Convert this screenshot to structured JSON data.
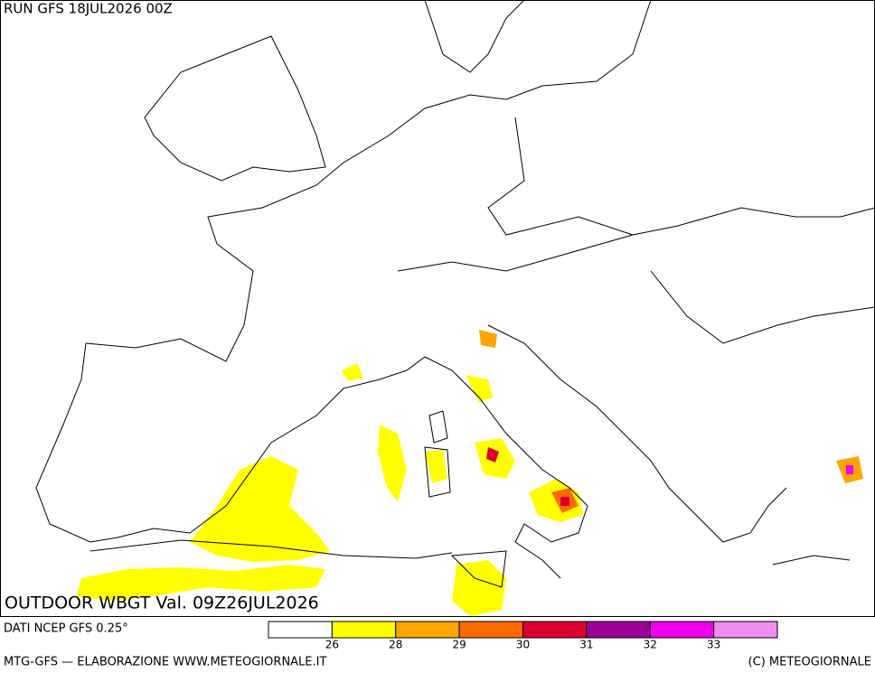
{
  "header": {
    "run": "RUN GFS 18JUL2026 00Z"
  },
  "map": {
    "title": "OUTDOOR WBGT Val. 09Z26JUL2026"
  },
  "footer": {
    "source": "DATI NCEP GFS 0.25°",
    "credit": "MTG-GFS — ELABORAZIONE WWW.METEOGIORNALE.IT",
    "copyright": "(C) METEOGIORNALE"
  },
  "legend": {
    "colors": [
      "#ffffff",
      "#ffff00",
      "#ffa500",
      "#ff6a00",
      "#dc0030",
      "#9a0096",
      "#ee00ee",
      "#f08cf0"
    ],
    "labels": [
      26,
      28,
      29,
      30,
      31,
      32,
      33
    ]
  }
}
